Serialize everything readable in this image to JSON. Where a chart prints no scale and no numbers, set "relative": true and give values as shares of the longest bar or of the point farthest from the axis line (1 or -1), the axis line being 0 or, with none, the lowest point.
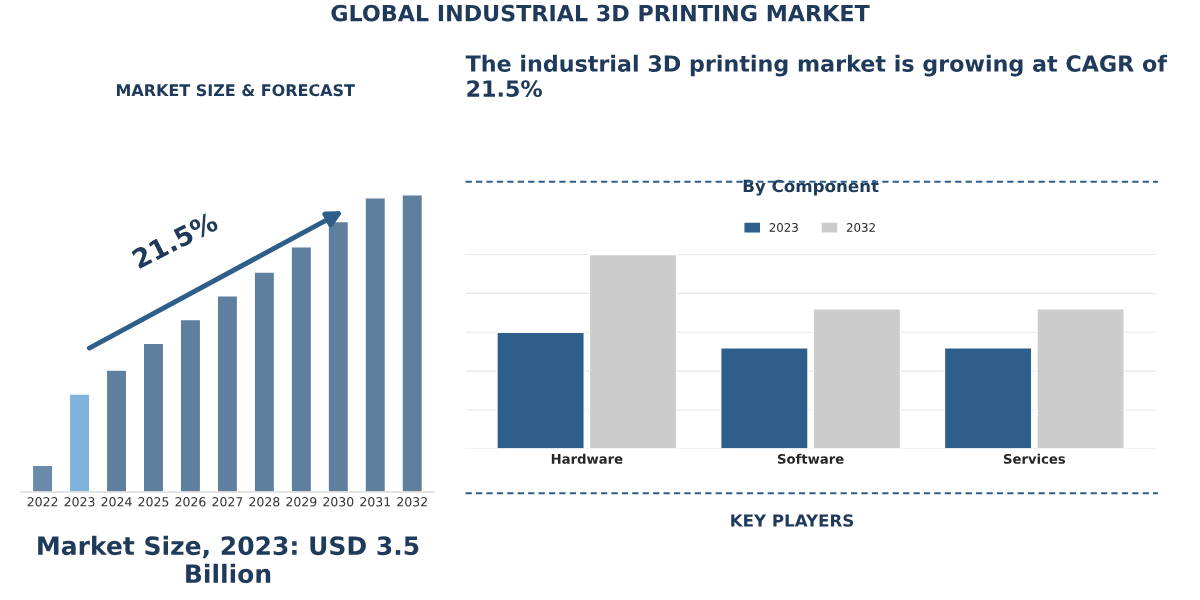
{
  "chart_data": [
    {
      "type": "bar",
      "title": "MARKET SIZE & FORECAST",
      "relative": true,
      "categories": [
        "2022",
        "2023",
        "2024",
        "2025",
        "2026",
        "2027",
        "2028",
        "2029",
        "2030",
        "2031",
        "2032"
      ],
      "values": [
        0.09,
        0.33,
        0.41,
        0.5,
        0.58,
        0.66,
        0.74,
        0.825,
        0.91,
        0.99,
        1
      ],
      "colors": [
        "#6a8aab",
        "#80b3dc",
        "#5f7f9e",
        "#5f7f9e",
        "#5f7f9e",
        "#5f7f9e",
        "#5f7f9e",
        "#5f7f9e",
        "#5f7f9e",
        "#5f7f9e",
        "#5f7f9e"
      ],
      "annotations": [
        "GLOBAL INDUSTRIAL 3D PRINTING MARKET",
        "21.5%",
        "Market Size, 2023: USD 3.5 Billion"
      ]
    },
    {
      "type": "bar",
      "title": "By Component",
      "relative": true,
      "grid": "y",
      "legend": "top",
      "categories": [
        "Hardware",
        "Software",
        "Services"
      ],
      "series": [
        {
          "name": "2023",
          "color": "#2e5f8a",
          "values": [
            0.6,
            0.52,
            0.52
          ]
        },
        {
          "name": "2032",
          "color": "#cccccc",
          "values": [
            1,
            0.72,
            0.72
          ]
        }
      ],
      "annotations": [
        "The industrial 3D printing market is growing at CAGR of 21.5%",
        "KEY PLAYERS"
      ]
    }
  ]
}
